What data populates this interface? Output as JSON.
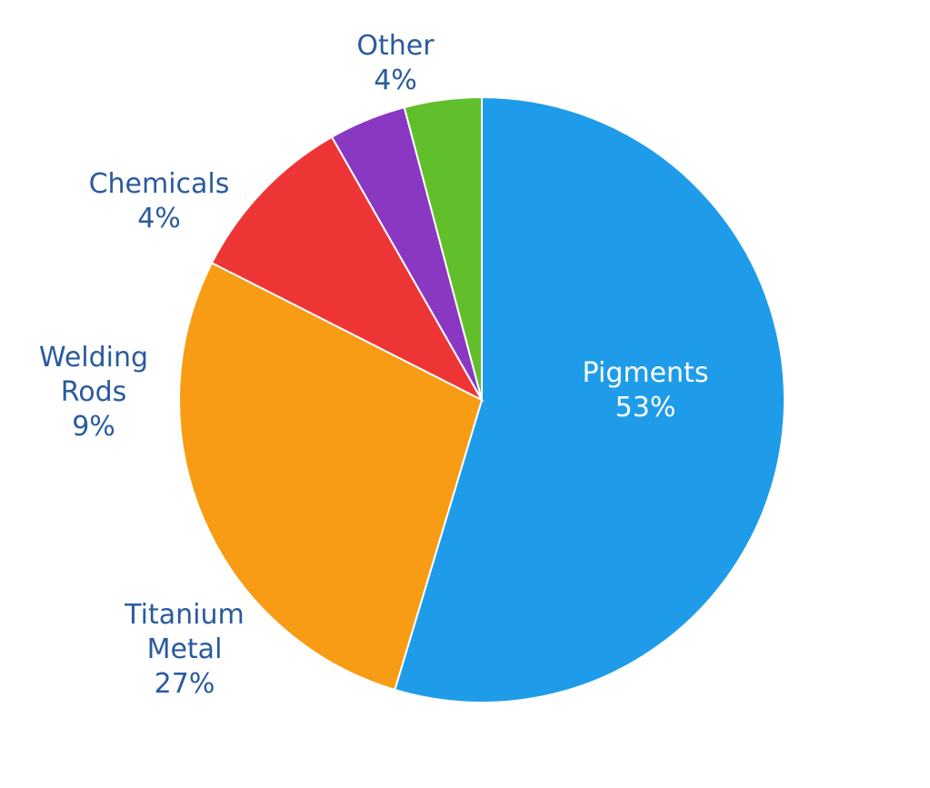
{
  "chart_data": {
    "type": "pie",
    "categories": [
      "Pigments",
      "Titanium Metal",
      "Welding Rods",
      "Chemicals",
      "Other"
    ],
    "values": [
      53,
      27,
      9,
      4,
      4
    ],
    "value_labels": [
      "53%",
      "27%",
      "9%",
      "4%",
      "4%"
    ],
    "colors": [
      "#1f9ce9",
      "#f79c14",
      "#ee3535",
      "#8a37c1",
      "#62bf2c"
    ]
  }
}
